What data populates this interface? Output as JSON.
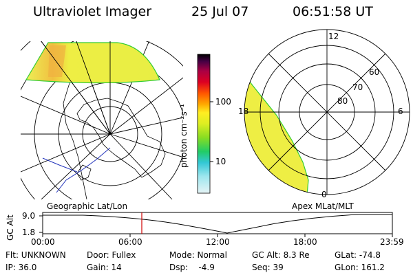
{
  "header": {
    "instrument": "Ultraviolet Imager",
    "date": "25 Jul 07",
    "time": "06:51:58 UT"
  },
  "colorbar": {
    "label": "photon cm⁻²s⁻¹",
    "ticks": [
      "100",
      "10"
    ]
  },
  "geo_panel": {
    "label": "Geographic Lat/Lon"
  },
  "polar_panel": {
    "label": "Apex MLat/MLT",
    "mlt_labels": [
      "12",
      "18",
      "6",
      "0"
    ],
    "lat_labels": [
      "60",
      "70",
      "80"
    ]
  },
  "timeline": {
    "ylabel": "GC Alt",
    "y_ticks": [
      "9.0",
      "1.8"
    ],
    "x_ticks": [
      "00:00",
      "06:00",
      "12:00",
      "18:00",
      "23:59"
    ],
    "current_time": "06:52",
    "colors": {
      "marker": "#d00000"
    }
  },
  "info": {
    "row1": [
      "Flt: UNKNOWN",
      "Door: Fullex",
      "Mode: Normal",
      "GC Alt: 8.3 Re",
      "GLat: -74.8"
    ],
    "row2": [
      "IP: 36.0",
      "Gain: 14",
      "Dsp:    -4.9",
      "Seq: 39",
      "GLon: 161.2"
    ]
  }
}
